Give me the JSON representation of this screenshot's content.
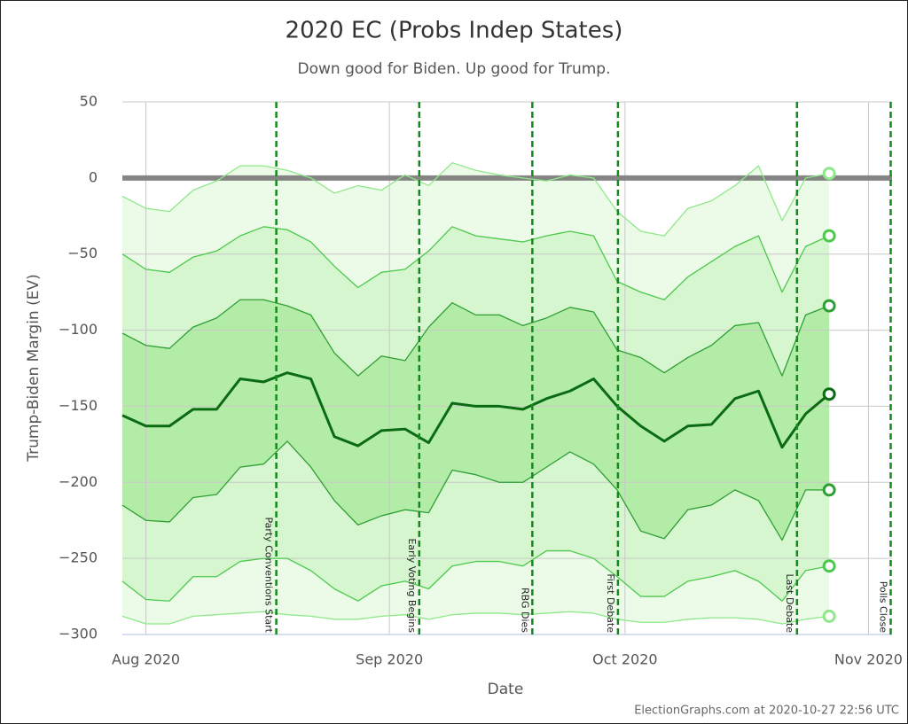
{
  "chart_data": {
    "type": "band-line",
    "title": "2020 EC (Probs Indep States)",
    "subtitle": "Down good for Biden. Up good for Trump.",
    "x_label": "Date",
    "y_label": "Trump-Biden Margin (EV)",
    "credit": "ElectionGraphs.com at 2020-10-27 22:56 UTC",
    "xlim": [
      -3,
      95
    ],
    "xticks": [
      {
        "value": 0,
        "label": "Aug 2020"
      },
      {
        "value": 31,
        "label": "Sep 2020"
      },
      {
        "value": 61,
        "label": "Oct 2020"
      },
      {
        "value": 92,
        "label": "Nov 2020"
      }
    ],
    "ylim": [
      -300,
      50
    ],
    "yticks": [
      {
        "value": -300,
        "label": "−300"
      },
      {
        "value": -250,
        "label": "−250"
      },
      {
        "value": -200,
        "label": "−200"
      },
      {
        "value": -150,
        "label": "−150"
      },
      {
        "value": -100,
        "label": "−100"
      },
      {
        "value": -50,
        "label": "−50"
      },
      0,
      50
    ],
    "grid": true,
    "reference_line": 0,
    "x": [
      -3,
      0,
      3,
      6,
      9,
      12,
      15,
      18,
      21,
      24,
      27,
      30,
      33,
      36,
      39,
      42,
      45,
      48,
      51,
      54,
      57,
      60,
      63,
      66,
      69,
      72,
      75,
      78,
      81,
      84,
      87
    ],
    "series": [
      {
        "color": "#8fe88a",
        "width": 1.3,
        "values": [
          -12,
          -20,
          -22,
          -8,
          -2,
          8,
          8,
          5,
          0,
          -10,
          -5,
          -8,
          2,
          -5,
          10,
          5,
          2,
          0,
          -2,
          2,
          0,
          -22,
          -35,
          -38,
          -20,
          -15,
          -5,
          8,
          -28,
          0,
          3
        ]
      },
      {
        "color": "#4cc94c",
        "width": 1.3,
        "values": [
          -50,
          -60,
          -62,
          -52,
          -48,
          -38,
          -32,
          -34,
          -42,
          -58,
          -72,
          -62,
          -60,
          -48,
          -32,
          -38,
          -40,
          -42,
          -38,
          -35,
          -38,
          -68,
          -75,
          -80,
          -65,
          -55,
          -45,
          -38,
          -75,
          -45,
          -38
        ]
      },
      {
        "color": "#2f9f35",
        "width": 1.3,
        "values": [
          -102,
          -110,
          -112,
          -98,
          -92,
          -80,
          -80,
          -84,
          -90,
          -115,
          -130,
          -117,
          -120,
          -98,
          -82,
          -90,
          -90,
          -97,
          -92,
          -85,
          -88,
          -113,
          -118,
          -128,
          -118,
          -110,
          -97,
          -95,
          -130,
          -90,
          -84
        ]
      },
      {
        "color": "#0b6b12",
        "width": 3,
        "values": [
          -156,
          -163,
          -163,
          -152,
          -152,
          -132,
          -134,
          -128,
          -132,
          -170,
          -176,
          -166,
          -165,
          -174,
          -148,
          -150,
          -150,
          -152,
          -145,
          -140,
          -132,
          -150,
          -163,
          -173,
          -163,
          -162,
          -145,
          -140,
          -177,
          -155,
          -142
        ]
      },
      {
        "color": "#2f9f35",
        "width": 1.3,
        "values": [
          -215,
          -225,
          -226,
          -210,
          -208,
          -190,
          -188,
          -173,
          -190,
          -212,
          -228,
          -222,
          -218,
          -220,
          -192,
          -195,
          -200,
          -200,
          -190,
          -180,
          -188,
          -205,
          -232,
          -237,
          -218,
          -215,
          -205,
          -212,
          -238,
          -205,
          -205
        ]
      },
      {
        "color": "#4cc94c",
        "width": 1.3,
        "values": [
          -265,
          -277,
          -278,
          -262,
          -262,
          -252,
          -250,
          -250,
          -258,
          -270,
          -278,
          -268,
          -265,
          -270,
          -255,
          -252,
          -252,
          -255,
          -245,
          -245,
          -250,
          -262,
          -275,
          -275,
          -265,
          -262,
          -258,
          -265,
          -278,
          -258,
          -255
        ]
      },
      {
        "color": "#8fe88a",
        "width": 1.3,
        "values": [
          -288,
          -293,
          -293,
          -288,
          -287,
          -286,
          -285,
          -287,
          -288,
          -290,
          -290,
          -288,
          -287,
          -290,
          -287,
          -286,
          -286,
          -287,
          -286,
          -285,
          -286,
          -290,
          -292,
          -292,
          -290,
          -289,
          -289,
          -290,
          -293,
          -290,
          -288
        ]
      }
    ],
    "bands": [
      {
        "from": 0,
        "to": 6,
        "color": "#ecfbe8"
      },
      {
        "from": 1,
        "to": 5,
        "color": "#d6f6cf"
      },
      {
        "from": 2,
        "to": 4,
        "color": "#b3eca6"
      }
    ],
    "events": [
      {
        "x": 16.6,
        "label": "Party Conventions Start"
      },
      {
        "x": 34.8,
        "label": "Early Voting Begins"
      },
      {
        "x": 49.2,
        "label": "RBG Dies"
      },
      {
        "x": 60.1,
        "label": "First Debate"
      },
      {
        "x": 82.9,
        "label": "Last Debate"
      },
      {
        "x": 95,
        "label": "Polls Close"
      }
    ],
    "event_color": "#138a1c"
  }
}
